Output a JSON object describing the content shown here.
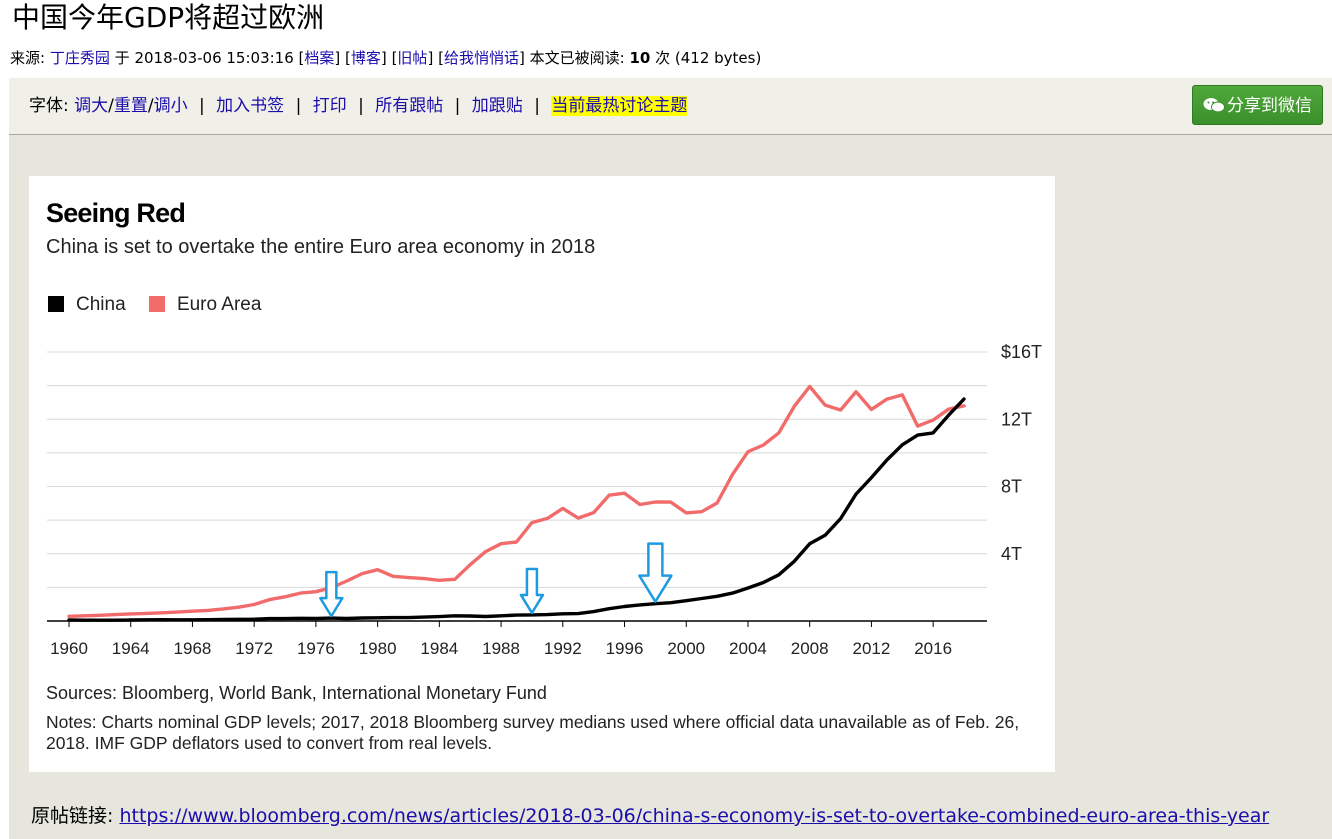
{
  "post": {
    "title": "中国今年GDP将超过欧洲",
    "source_label": "来源:",
    "author": "丁庄秀园",
    "at_label": "于",
    "datetime": "2018-03-06 15:03:16",
    "links": [
      "档案",
      "博客",
      "旧帖",
      "给我悄悄话"
    ],
    "read_label": "本文已被阅读:",
    "read_count": "10",
    "read_unit": "次",
    "size": "(412 bytes)"
  },
  "toolbar": {
    "font_label": "字体:",
    "bigger": "调大",
    "reset": "重置",
    "smaller": "调小",
    "bookmark": "加入书签",
    "print": "打印",
    "all_replies": "所有跟帖",
    "reply": "加跟贴",
    "hot_topics": "当前最热讨论主题",
    "wechat_share": "分享到微信"
  },
  "origin": {
    "label": "原帖链接:",
    "url": "https://www.bloomberg.com/news/articles/2018-03-06/china-s-economy-is-set-to-overtake-combined-euro-area-this-year"
  },
  "colors": {
    "china": "#000000",
    "euro": "#f26b6b",
    "arrow": "#1e9be0",
    "hot": "#ffff00"
  },
  "chart_data": {
    "type": "line",
    "title": "Seeing Red",
    "subtitle": "China is set to overtake the entire Euro area economy in 2018",
    "y_ticks": [
      "4T",
      "8T",
      "12T",
      "$16T"
    ],
    "y_tick_values": [
      4,
      8,
      12,
      16
    ],
    "ylim": [
      0,
      16
    ],
    "xlim": [
      1960,
      2018
    ],
    "x_ticks": [
      1960,
      1964,
      1968,
      1972,
      1976,
      1980,
      1984,
      1988,
      1992,
      1996,
      2000,
      2004,
      2008,
      2012,
      2016
    ],
    "unit": "trillion USD",
    "x": [
      1960,
      1961,
      1962,
      1963,
      1964,
      1965,
      1966,
      1967,
      1968,
      1969,
      1970,
      1971,
      1972,
      1973,
      1974,
      1975,
      1976,
      1977,
      1978,
      1979,
      1980,
      1981,
      1982,
      1983,
      1984,
      1985,
      1986,
      1987,
      1988,
      1989,
      1990,
      1991,
      1992,
      1993,
      1994,
      1995,
      1996,
      1997,
      1998,
      1999,
      2000,
      2001,
      2002,
      2003,
      2004,
      2005,
      2006,
      2007,
      2008,
      2009,
      2010,
      2011,
      2012,
      2013,
      2014,
      2015,
      2016,
      2017,
      2018
    ],
    "series": [
      {
        "name": "China",
        "values": [
          0.06,
          0.05,
          0.05,
          0.05,
          0.06,
          0.07,
          0.08,
          0.07,
          0.07,
          0.08,
          0.09,
          0.1,
          0.11,
          0.14,
          0.14,
          0.16,
          0.15,
          0.17,
          0.15,
          0.18,
          0.19,
          0.2,
          0.2,
          0.23,
          0.26,
          0.31,
          0.3,
          0.27,
          0.31,
          0.35,
          0.36,
          0.38,
          0.43,
          0.44,
          0.56,
          0.73,
          0.86,
          0.96,
          1.03,
          1.09,
          1.21,
          1.34,
          1.47,
          1.66,
          1.96,
          2.29,
          2.75,
          3.55,
          4.59,
          5.1,
          6.09,
          7.55,
          8.53,
          9.57,
          10.48,
          11.06,
          11.19,
          12.24,
          13.2
        ]
      },
      {
        "name": "Euro Area",
        "values": [
          0.28,
          0.31,
          0.34,
          0.38,
          0.42,
          0.45,
          0.49,
          0.53,
          0.58,
          0.63,
          0.72,
          0.82,
          0.98,
          1.27,
          1.44,
          1.66,
          1.74,
          1.98,
          2.38,
          2.82,
          3.05,
          2.66,
          2.58,
          2.52,
          2.42,
          2.48,
          3.35,
          4.13,
          4.6,
          4.7,
          5.85,
          6.1,
          6.7,
          6.12,
          6.45,
          7.48,
          7.6,
          6.93,
          7.08,
          7.07,
          6.43,
          6.5,
          7.02,
          8.72,
          10.07,
          10.47,
          11.19,
          12.77,
          13.95,
          12.84,
          12.55,
          13.63,
          12.58,
          13.19,
          13.45,
          11.59,
          11.95,
          12.6,
          12.8
        ]
      }
    ],
    "legend": [
      "China",
      "Euro Area"
    ],
    "markers": [
      1977,
      1990,
      1998
    ],
    "sources": "Sources: Bloomberg, World Bank, International Monetary Fund",
    "notes": "Notes: Charts nominal GDP levels; 2017, 2018 Bloomberg survey medians used where official data unavailable as of Feb. 26, 2018. IMF GDP deflators used to convert from real levels."
  }
}
